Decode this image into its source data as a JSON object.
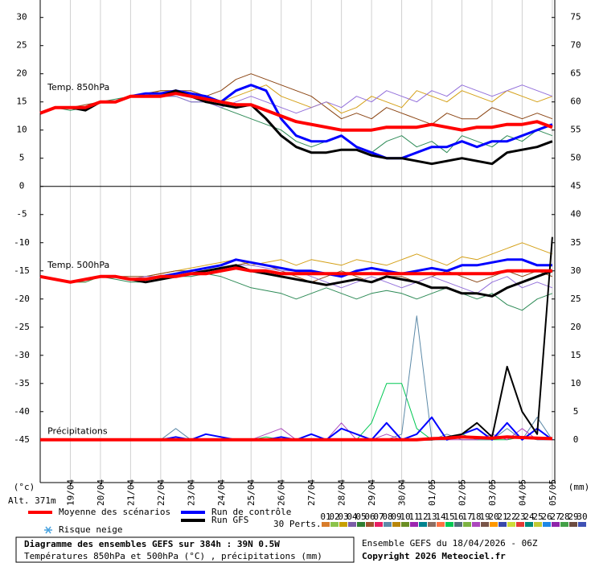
{
  "chart_data": {
    "type": "line",
    "title": "Diagramme des ensembles GEFS sur 384h : 39N 0.5W",
    "subtitle": "Températures 850hPa et 500hPa (°C) , précipitations (mm)",
    "run_info": "Ensemble GEFS du 18/04/2026 - 06Z",
    "copyright": "Copyright 2026 Meteociel.fr",
    "y_unit": "(°c)",
    "y2_unit": "(mm)",
    "altitude": "Alt. 371m",
    "annotations": [
      {
        "text": "Temp. 850hPa",
        "x": 2,
        "y": 17.5
      },
      {
        "text": "Temp. 500hPa",
        "x": 2,
        "y": -14
      },
      {
        "text": "Précipitations",
        "x": 2,
        "y": -43.5
      }
    ],
    "snow_label": "Risque neige",
    "perturbations": {
      "label": "30 Perts.",
      "numbers": [
        "01",
        "02",
        "03",
        "04",
        "05",
        "06",
        "07",
        "08",
        "09",
        "10",
        "11",
        "12",
        "13",
        "14",
        "15",
        "16",
        "17",
        "18",
        "19",
        "20",
        "21",
        "22",
        "23",
        "24",
        "25",
        "26",
        "27",
        "28",
        "29",
        "30"
      ],
      "colors": [
        "#d87c2a",
        "#8bc34a",
        "#c8a000",
        "#7b5ea7",
        "#2e7d32",
        "#a0522d",
        "#e91e63",
        "#5d8aa8",
        "#b8860b",
        "#6b8e23",
        "#9c27b0",
        "#00838f",
        "#8d6e63",
        "#ff7043",
        "#00c853",
        "#546e7a",
        "#7cb342",
        "#ab47bc",
        "#795548",
        "#ff9800",
        "#3949ab",
        "#cddc39",
        "#e53935",
        "#00897b",
        "#c0ca33",
        "#1e88e5",
        "#8e24aa",
        "#43a047",
        "#6d4c41",
        "#3f51b5"
      ]
    },
    "xlim": [
      0,
      410
    ],
    "xticks": [
      {
        "value": 24,
        "label": "19/04"
      },
      {
        "value": 48,
        "label": "20/04"
      },
      {
        "value": 72,
        "label": "21/04"
      },
      {
        "value": 96,
        "label": "22/04"
      },
      {
        "value": 120,
        "label": "23/04"
      },
      {
        "value": 144,
        "label": "24/04"
      },
      {
        "value": 168,
        "label": "25/04"
      },
      {
        "value": 192,
        "label": "26/04"
      },
      {
        "value": 216,
        "label": "27/04"
      },
      {
        "value": 240,
        "label": "28/04"
      },
      {
        "value": 264,
        "label": "29/04"
      },
      {
        "value": 288,
        "label": "30/04"
      },
      {
        "value": 312,
        "label": "01/05"
      },
      {
        "value": 336,
        "label": "02/05"
      },
      {
        "value": 360,
        "label": "03/05"
      },
      {
        "value": 384,
        "label": "04/05"
      },
      {
        "value": 408,
        "label": "05/05"
      }
    ],
    "ylim": [
      -52.6,
      33.1
    ],
    "yticks": [
      30,
      25,
      20,
      15,
      10,
      5,
      0,
      -5,
      -10,
      -15,
      -20,
      -25,
      -30,
      -35,
      -40,
      -45
    ],
    "y2lim": [
      -7.6,
      78.1
    ],
    "y2ticks": [
      75,
      70,
      65,
      60,
      55,
      50,
      45,
      40,
      35,
      30,
      25,
      20,
      15,
      10,
      5,
      0
    ],
    "zero_line": true,
    "grid": true,
    "x": [
      0,
      12,
      24,
      36,
      48,
      60,
      72,
      84,
      96,
      108,
      120,
      132,
      144,
      156,
      168,
      180,
      192,
      204,
      216,
      228,
      240,
      252,
      264,
      276,
      288,
      300,
      312,
      324,
      336,
      348,
      360,
      372,
      384,
      396,
      408
    ],
    "series": [
      {
        "color": "#d4a017",
        "values": [
          13,
          14,
          14,
          14,
          15,
          15,
          16,
          16,
          17,
          17,
          16,
          16,
          15,
          16,
          17,
          18,
          16,
          15,
          14,
          15,
          13,
          14,
          16,
          15,
          14,
          17,
          16,
          15,
          17,
          16,
          15,
          17,
          16,
          15,
          16
        ]
      },
      {
        "color": "#2e8b57",
        "values": [
          13,
          14,
          13.5,
          14,
          15,
          15.5,
          16,
          16,
          16,
          16,
          15,
          15,
          14,
          13,
          12,
          11,
          10,
          8,
          7,
          8,
          9,
          7,
          6,
          8,
          9,
          7,
          8,
          6,
          9,
          8,
          7,
          9,
          8,
          10,
          9
        ]
      },
      {
        "color": "#8b4513",
        "values": [
          13,
          14,
          14,
          14.5,
          15,
          15,
          16,
          16.5,
          17,
          17,
          17,
          16,
          17,
          19,
          20,
          19,
          18,
          17,
          16,
          14,
          12,
          13,
          12,
          14,
          13,
          12,
          11,
          13,
          12,
          12,
          14,
          13,
          12,
          13,
          12
        ]
      },
      {
        "color": "#9370db",
        "values": [
          13,
          14,
          14,
          14,
          15,
          15,
          16,
          16,
          16,
          16,
          15,
          15,
          14,
          15,
          16,
          15,
          14,
          13,
          14,
          15,
          14,
          16,
          15,
          17,
          16,
          15,
          17,
          16,
          18,
          17,
          16,
          17,
          18,
          17,
          16
        ]
      },
      {
        "color": "#d4a017",
        "values": [
          -16,
          -16.5,
          -17,
          -17,
          -16,
          -16,
          -16.5,
          -16,
          -15.5,
          -15,
          -14.5,
          -14,
          -13.5,
          -13,
          -14,
          -13.5,
          -13,
          -14,
          -13,
          -13.5,
          -14,
          -13,
          -13.5,
          -14,
          -13,
          -12,
          -13,
          -14,
          -12.5,
          -13,
          -12,
          -11,
          -10,
          -11,
          -12
        ]
      },
      {
        "color": "#2e8b57",
        "values": [
          -16,
          -16.5,
          -17,
          -17,
          -16,
          -16.5,
          -17,
          -17,
          -16.5,
          -16,
          -16,
          -15.5,
          -16,
          -17,
          -18,
          -18.5,
          -19,
          -20,
          -19,
          -18,
          -19,
          -20,
          -19,
          -18.5,
          -19,
          -20,
          -19,
          -18,
          -19,
          -20,
          -19,
          -21,
          -22,
          -20,
          -19
        ]
      },
      {
        "color": "#8b4513",
        "values": [
          -16,
          -16.5,
          -17,
          -16.5,
          -16,
          -16,
          -16,
          -16,
          -15.5,
          -15,
          -15,
          -15,
          -14.5,
          -14,
          -13.5,
          -14,
          -15,
          -16,
          -17,
          -16,
          -15,
          -16,
          -17,
          -16,
          -16,
          -17,
          -16,
          -15,
          -16,
          -17,
          -16,
          -15,
          -16,
          -15,
          -16
        ]
      },
      {
        "color": "#9370db",
        "values": [
          -16,
          -16.5,
          -17,
          -16.5,
          -16,
          -16,
          -16.5,
          -16,
          -16,
          -15.5,
          -15,
          -15,
          -14.5,
          -14,
          -14,
          -14.5,
          -15,
          -15,
          -16,
          -17,
          -18,
          -17,
          -16,
          -17,
          -18,
          -17,
          -16,
          -17,
          -18,
          -19,
          -17,
          -16,
          -18,
          -17,
          -18
        ]
      },
      {
        "color": "#00c853",
        "axis": "y2",
        "values": [
          0,
          0,
          0,
          0,
          0,
          0,
          0,
          0,
          0,
          0,
          0,
          0,
          0,
          0,
          0,
          0.5,
          0,
          0,
          1,
          0,
          0,
          0,
          3,
          10,
          10,
          2,
          0,
          0,
          1,
          0,
          0,
          0,
          0.5,
          0,
          0
        ]
      },
      {
        "color": "#5d8aa8",
        "axis": "y2",
        "values": [
          0,
          0,
          0,
          0,
          0,
          0,
          0,
          0,
          0,
          2,
          0,
          0,
          0,
          0,
          0,
          0,
          0,
          0,
          0,
          0,
          0,
          0,
          0,
          0,
          1,
          22,
          0,
          1,
          0,
          0,
          0,
          2,
          0,
          4,
          0
        ]
      },
      {
        "color": "#ab47bc",
        "axis": "y2",
        "values": [
          0,
          0,
          0,
          0,
          0,
          0,
          0,
          0,
          0,
          0,
          0,
          0,
          0,
          0,
          0,
          1,
          2,
          0,
          0,
          0,
          3,
          0,
          0,
          1,
          0,
          0,
          0,
          0,
          0,
          0,
          1,
          0,
          2,
          0,
          0
        ]
      },
      {
        "name": "Run de contrôle",
        "color": "#0000ff",
        "width": 3,
        "values": [
          13,
          14,
          14,
          14,
          15,
          15,
          16,
          16.5,
          16.5,
          17,
          16.5,
          16,
          15,
          17,
          18,
          17,
          12,
          9,
          8,
          8,
          9,
          7,
          6,
          5,
          5,
          6,
          7,
          7,
          8,
          7,
          8,
          8,
          9,
          10,
          11
        ]
      },
      {
        "name": "Run de contrôle",
        "color": "#0000ff",
        "width": 3,
        "values": [
          -16,
          -16.5,
          -17,
          -16.5,
          -16,
          -16,
          -16.5,
          -16.5,
          -16,
          -15.5,
          -15,
          -14.5,
          -14,
          -13,
          -13.5,
          -14,
          -14.5,
          -15,
          -15,
          -15.5,
          -16,
          -15,
          -14.5,
          -15,
          -15.5,
          -15,
          -14.5,
          -15,
          -14,
          -14,
          -13.5,
          -13,
          -13,
          -14,
          -14
        ]
      },
      {
        "name": "Run de contrôle",
        "color": "#0000ff",
        "width": 2,
        "axis": "y2",
        "values": [
          0,
          0,
          0,
          0,
          0,
          0,
          0,
          0,
          0,
          0.5,
          0,
          1,
          0.5,
          0,
          0,
          0,
          0.5,
          0,
          1,
          0,
          2,
          1,
          0,
          3,
          0,
          1,
          4,
          0,
          1,
          2,
          0,
          3,
          0,
          2,
          0
        ]
      },
      {
        "name": "Run GFS",
        "color": "#000000",
        "width": 3,
        "values": [
          13,
          14,
          14,
          13.5,
          15,
          15,
          16,
          16,
          16,
          17,
          16,
          15,
          14.5,
          14,
          14.5,
          12,
          9,
          7,
          6,
          6,
          6.5,
          6.5,
          5.5,
          5,
          5,
          4.5,
          4,
          4.5,
          5,
          4.5,
          4,
          6,
          6.5,
          7,
          8
        ]
      },
      {
        "name": "Run GFS",
        "color": "#000000",
        "width": 3,
        "values": [
          -16,
          -16.5,
          -17,
          -16.5,
          -16,
          -16,
          -16.5,
          -17,
          -16.5,
          -16,
          -15.5,
          -15,
          -14.5,
          -14,
          -15,
          -15.5,
          -16,
          -16.5,
          -17,
          -17.5,
          -17,
          -16.5,
          -17,
          -16,
          -16.5,
          -17,
          -18,
          -18,
          -19,
          -19,
          -19.5,
          -18,
          -17,
          -16,
          -15
        ]
      },
      {
        "name": "Run GFS",
        "color": "#000000",
        "width": 2,
        "axis": "y2",
        "values": [
          0,
          0,
          0,
          0,
          0,
          0,
          0,
          0,
          0,
          0,
          0,
          0,
          0,
          0,
          0,
          0,
          0,
          0,
          0,
          0,
          0,
          0,
          0,
          0,
          0,
          0,
          0,
          0.5,
          1,
          3,
          0.5,
          13,
          5,
          1,
          36
        ]
      },
      {
        "name": "Moyenne des scénarios",
        "color": "#ff0000",
        "width": 4,
        "values": [
          13,
          14,
          14,
          14,
          15,
          15,
          16,
          16,
          16,
          16.5,
          16,
          15.5,
          15,
          14.5,
          14.5,
          13.5,
          12.5,
          11.5,
          11,
          10.5,
          10,
          10,
          10,
          10.5,
          10.5,
          10.5,
          11,
          10.5,
          10,
          10.5,
          10.5,
          11,
          11,
          11.5,
          10.5
        ]
      },
      {
        "name": "Moyenne des scénarios",
        "color": "#ff0000",
        "width": 4,
        "values": [
          -16,
          -16.5,
          -17,
          -16.5,
          -16,
          -16,
          -16.5,
          -16.5,
          -16,
          -16,
          -15.5,
          -15.5,
          -15,
          -14.5,
          -15,
          -15,
          -15.5,
          -15.5,
          -15.5,
          -15.5,
          -15.5,
          -15.5,
          -15.5,
          -15.5,
          -15.5,
          -15.5,
          -15.5,
          -15.5,
          -15.5,
          -15.5,
          -15.5,
          -15,
          -15,
          -15,
          -15
        ]
      },
      {
        "name": "Moyenne des scénarios",
        "color": "#ff0000",
        "width": 4,
        "axis": "y2",
        "values": [
          0,
          0,
          0,
          0,
          0,
          0,
          0,
          0,
          0,
          0,
          0,
          0,
          0,
          0,
          0,
          0,
          0,
          0,
          0,
          0,
          0,
          0,
          0,
          0,
          0,
          0,
          0.2,
          0.3,
          0.5,
          0.4,
          0.3,
          0.5,
          0.4,
          0.3,
          0.2
        ]
      }
    ]
  }
}
